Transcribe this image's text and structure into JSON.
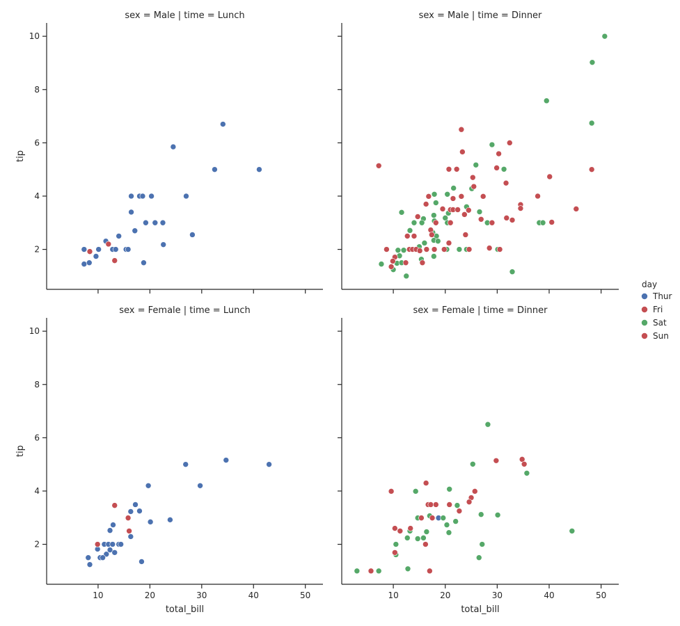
{
  "chart_data": {
    "type": "scatter",
    "layout": "facet-grid 2x2",
    "row_variable": "sex",
    "col_variable": "time",
    "xlabel": "total_bill",
    "ylabel": "tip",
    "xlim": [
      0.07,
      53.4
    ],
    "ylim": [
      0.5,
      10.5
    ],
    "xticks": [
      10,
      20,
      30,
      40,
      50
    ],
    "yticks": [
      2,
      4,
      6,
      8,
      10
    ],
    "grid": false,
    "legend": {
      "title": "day",
      "placement": "right",
      "entries": [
        {
          "label": "Thur",
          "color": "#4c72b0"
        },
        {
          "label": "Fri",
          "color": "#c44e52"
        },
        {
          "label": "Sat",
          "color": "#55a868"
        },
        {
          "label": "Sun",
          "color": "#c44e52"
        }
      ]
    },
    "panels": [
      {
        "title": "sex = Male | time = Lunch",
        "series": {
          "Thur": [
            [
              7.3,
              2.0
            ],
            [
              7.3,
              1.45
            ],
            [
              8.3,
              1.5
            ],
            [
              9.6,
              1.74
            ],
            [
              10.1,
              2.0
            ],
            [
              11.5,
              2.31
            ],
            [
              12.8,
              2.0
            ],
            [
              13.4,
              2.0
            ],
            [
              14.0,
              2.5
            ],
            [
              15.4,
              2.0
            ],
            [
              15.8,
              2.0
            ],
            [
              16.4,
              4.0
            ],
            [
              16.4,
              3.4
            ],
            [
              17.1,
              2.7
            ],
            [
              18.0,
              4.0
            ],
            [
              18.6,
              4.0
            ],
            [
              20.3,
              4.0
            ],
            [
              19.2,
              3.0
            ],
            [
              21.0,
              3.0
            ],
            [
              22.5,
              3.0
            ],
            [
              22.6,
              2.18
            ],
            [
              18.8,
              1.5
            ],
            [
              24.5,
              5.85
            ],
            [
              27.0,
              4.0
            ],
            [
              28.2,
              2.55
            ],
            [
              32.5,
              5.0
            ],
            [
              34.1,
              6.7
            ],
            [
              41.1,
              5.0
            ]
          ],
          "Fri": [
            [
              8.4,
              1.92
            ],
            [
              12.0,
              2.2
            ],
            [
              13.2,
              1.58
            ]
          ],
          "Sat": [],
          "Sun": []
        }
      },
      {
        "title": "sex = Male | time = Dinner",
        "series": {
          "Thur": [],
          "Fri": [],
          "Sat": [
            [
              50.7,
              10.0
            ],
            [
              48.3,
              9.02
            ],
            [
              39.5,
              7.58
            ],
            [
              48.2,
              6.74
            ],
            [
              29.0,
              5.93
            ],
            [
              25.9,
              5.17
            ],
            [
              31.3,
              5.01
            ],
            [
              21.6,
              4.3
            ],
            [
              25.1,
              4.28
            ],
            [
              17.9,
              4.07
            ],
            [
              20.4,
              4.07
            ],
            [
              18.2,
              3.75
            ],
            [
              11.6,
              3.39
            ],
            [
              24.1,
              3.6
            ],
            [
              20.6,
              3.36
            ],
            [
              26.6,
              3.41
            ],
            [
              15.8,
              3.15
            ],
            [
              17.8,
              3.28
            ],
            [
              14.0,
              3.0
            ],
            [
              15.5,
              3.0
            ],
            [
              17.9,
              3.07
            ],
            [
              20.0,
              3.18
            ],
            [
              20.4,
              3.0
            ],
            [
              28.1,
              3.0
            ],
            [
              38.1,
              3.0
            ],
            [
              38.8,
              3.0
            ],
            [
              13.2,
              2.71
            ],
            [
              17.6,
              2.63
            ],
            [
              18.3,
              2.5
            ],
            [
              17.8,
              2.34
            ],
            [
              18.6,
              2.31
            ],
            [
              16.0,
              2.24
            ],
            [
              15.0,
              2.1
            ],
            [
              10.9,
              1.97
            ],
            [
              12.0,
              1.97
            ],
            [
              20.3,
              2.0
            ],
            [
              22.7,
              2.0
            ],
            [
              24.1,
              2.0
            ],
            [
              30.1,
              2.0
            ],
            [
              11.2,
              1.76
            ],
            [
              17.8,
              1.74
            ],
            [
              15.4,
              1.63
            ],
            [
              7.7,
              1.45
            ],
            [
              10.7,
              1.48
            ],
            [
              11.6,
              1.5
            ],
            [
              10.0,
              1.24
            ],
            [
              12.5,
              1.0
            ],
            [
              32.9,
              1.16
            ]
          ],
          "Sun": [
            [
              23.1,
              6.5
            ],
            [
              32.4,
              6.0
            ],
            [
              23.3,
              5.66
            ],
            [
              30.3,
              5.59
            ],
            [
              7.2,
              5.14
            ],
            [
              20.7,
              5.01
            ],
            [
              22.2,
              5.01
            ],
            [
              29.9,
              5.06
            ],
            [
              25.3,
              4.7
            ],
            [
              31.7,
              4.49
            ],
            [
              25.5,
              4.36
            ],
            [
              48.2,
              5.0
            ],
            [
              40.1,
              4.73
            ],
            [
              37.8,
              4.0
            ],
            [
              16.8,
              3.99
            ],
            [
              21.5,
              3.91
            ],
            [
              23.1,
              3.99
            ],
            [
              27.3,
              3.99
            ],
            [
              16.3,
              3.7
            ],
            [
              19.5,
              3.52
            ],
            [
              21.0,
              3.49
            ],
            [
              21.5,
              3.49
            ],
            [
              22.4,
              3.49
            ],
            [
              24.5,
              3.47
            ],
            [
              23.7,
              3.31
            ],
            [
              34.5,
              3.68
            ],
            [
              34.5,
              3.54
            ],
            [
              45.2,
              3.52
            ],
            [
              14.7,
              3.23
            ],
            [
              26.9,
              3.13
            ],
            [
              31.8,
              3.18
            ],
            [
              32.9,
              3.1
            ],
            [
              40.5,
              3.02
            ],
            [
              18.2,
              3.0
            ],
            [
              21.0,
              3.0
            ],
            [
              29.0,
              3.0
            ],
            [
              17.2,
              2.73
            ],
            [
              17.4,
              2.55
            ],
            [
              12.7,
              2.5
            ],
            [
              14.0,
              2.5
            ],
            [
              23.9,
              2.55
            ],
            [
              20.7,
              2.24
            ],
            [
              8.7,
              2.0
            ],
            [
              13.1,
              2.0
            ],
            [
              13.7,
              2.0
            ],
            [
              14.4,
              2.0
            ],
            [
              15.1,
              1.95
            ],
            [
              16.4,
              2.0
            ],
            [
              17.9,
              2.0
            ],
            [
              19.8,
              2.0
            ],
            [
              24.6,
              2.0
            ],
            [
              28.5,
              2.05
            ],
            [
              30.5,
              2.0
            ],
            [
              10.3,
              1.71
            ],
            [
              9.9,
              1.56
            ],
            [
              12.4,
              1.5
            ],
            [
              15.6,
              1.5
            ],
            [
              9.6,
              1.35
            ]
          ]
        }
      },
      {
        "title": "sex = Female | time = Lunch",
        "series": {
          "Thur": [
            [
              26.9,
              5.0
            ],
            [
              34.7,
              5.16
            ],
            [
              43.0,
              5.0
            ],
            [
              19.7,
              4.2
            ],
            [
              29.7,
              4.2
            ],
            [
              17.2,
              3.49
            ],
            [
              16.3,
              3.23
            ],
            [
              18.0,
              3.25
            ],
            [
              20.1,
              2.84
            ],
            [
              23.9,
              2.92
            ],
            [
              12.9,
              2.73
            ],
            [
              12.3,
              2.52
            ],
            [
              16.3,
              2.29
            ],
            [
              9.9,
              1.82
            ],
            [
              11.2,
              2.0
            ],
            [
              12.0,
              2.0
            ],
            [
              12.8,
              2.0
            ],
            [
              14.0,
              2.0
            ],
            [
              14.4,
              2.0
            ],
            [
              12.3,
              1.79
            ],
            [
              11.6,
              1.63
            ],
            [
              13.2,
              1.69
            ],
            [
              8.1,
              1.5
            ],
            [
              10.4,
              1.5
            ],
            [
              10.9,
              1.5
            ],
            [
              8.4,
              1.24
            ],
            [
              18.4,
              1.35
            ]
          ],
          "Fri": [
            [
              13.2,
              3.46
            ],
            [
              15.8,
              2.99
            ],
            [
              16.0,
              2.5
            ],
            [
              9.9,
              2.0
            ]
          ],
          "Sat": [],
          "Sun": []
        }
      },
      {
        "title": "sex = Female | time = Dinner",
        "series": {
          "Thur": [
            [
              18.7,
              2.99
            ]
          ],
          "Fri": [],
          "Sat": [
            [
              28.2,
              6.5
            ],
            [
              25.3,
              5.01
            ],
            [
              20.8,
              4.07
            ],
            [
              14.3,
              3.99
            ],
            [
              22.3,
              3.46
            ],
            [
              26.9,
              3.12
            ],
            [
              30.1,
              3.1
            ],
            [
              35.7,
              4.67
            ],
            [
              17.0,
              3.07
            ],
            [
              19.6,
              2.99
            ],
            [
              22.0,
              2.86
            ],
            [
              20.3,
              2.73
            ],
            [
              13.2,
              2.5
            ],
            [
              16.4,
              2.47
            ],
            [
              20.7,
              2.44
            ],
            [
              12.7,
              2.24
            ],
            [
              14.7,
              2.21
            ],
            [
              15.8,
              2.24
            ],
            [
              10.5,
              2.0
            ],
            [
              27.1,
              2.0
            ],
            [
              10.5,
              1.61
            ],
            [
              26.5,
              1.5
            ],
            [
              3.0,
              1.0
            ],
            [
              7.2,
              1.0
            ],
            [
              12.8,
              1.08
            ],
            [
              44.4,
              2.5
            ],
            [
              14.7,
              2.99
            ]
          ],
          "Sun": [
            [
              29.8,
              5.14
            ],
            [
              34.8,
              5.19
            ],
            [
              35.2,
              5.01
            ],
            [
              16.3,
              4.3
            ],
            [
              9.6,
              3.99
            ],
            [
              25.7,
              3.99
            ],
            [
              25.0,
              3.75
            ],
            [
              24.6,
              3.59
            ],
            [
              16.7,
              3.49
            ],
            [
              17.2,
              3.49
            ],
            [
              18.2,
              3.49
            ],
            [
              20.8,
              3.49
            ],
            [
              22.7,
              3.25
            ],
            [
              15.4,
              2.99
            ],
            [
              17.5,
              2.99
            ],
            [
              10.3,
              2.6
            ],
            [
              11.3,
              2.5
            ],
            [
              13.3,
              2.6
            ],
            [
              16.2,
              2.0
            ],
            [
              10.3,
              1.69
            ],
            [
              5.7,
              1.0
            ],
            [
              17.0,
              1.0
            ]
          ]
        }
      }
    ]
  }
}
